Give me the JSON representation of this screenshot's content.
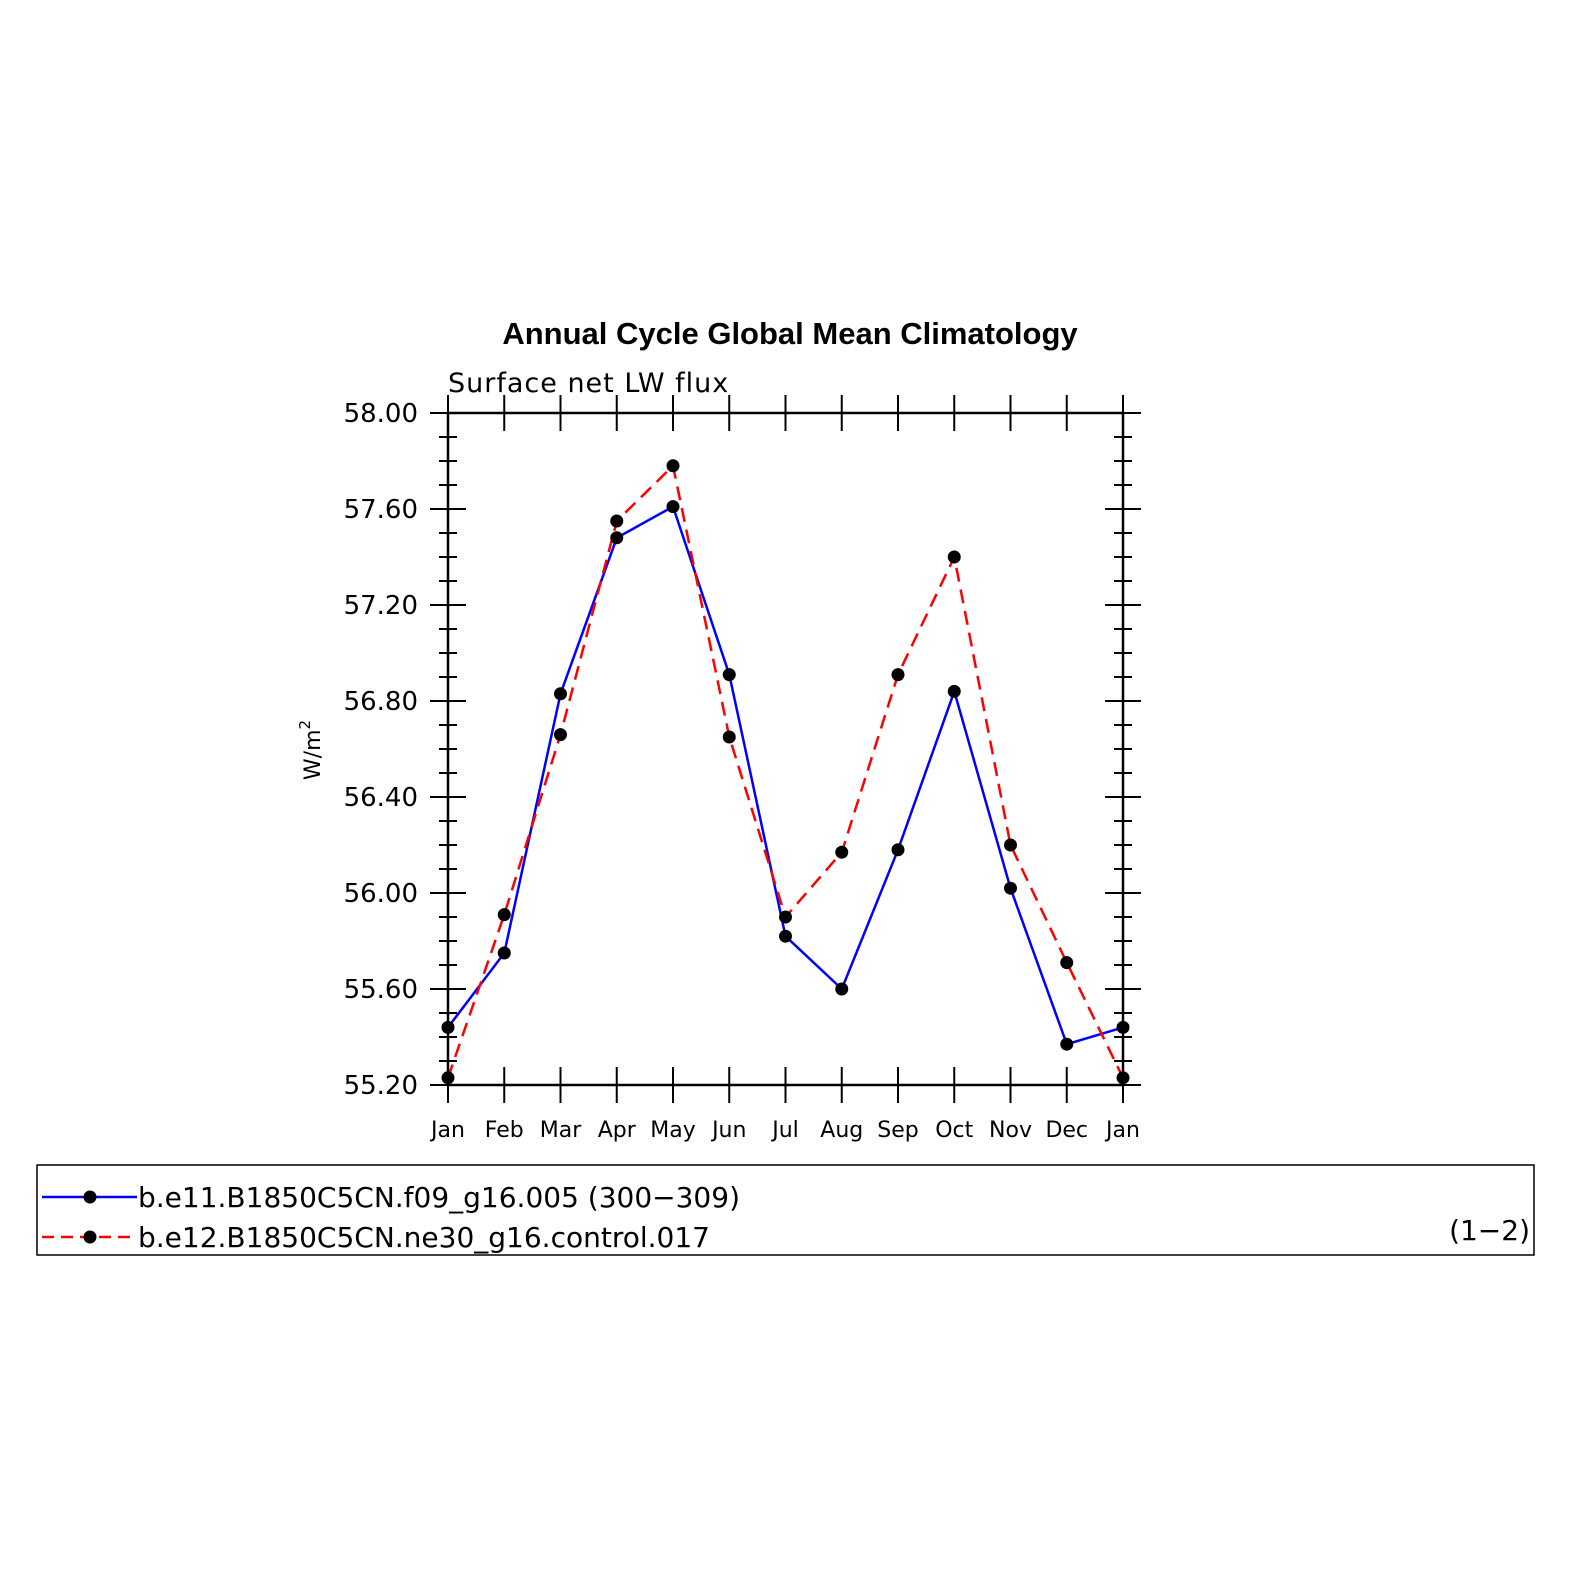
{
  "chart_data": {
    "type": "line",
    "title": "Annual Cycle Global Mean Climatology",
    "subtitle": "Surface net LW flux",
    "ylabel": "W/m",
    "ylabel_superscript": "2",
    "xlabel": "",
    "categories": [
      "Jan",
      "Feb",
      "Mar",
      "Apr",
      "May",
      "Jun",
      "Jul",
      "Aug",
      "Sep",
      "Oct",
      "Nov",
      "Dec",
      "Jan"
    ],
    "ylim": [
      55.2,
      58.0
    ],
    "yticks": [
      "55.20",
      "55.60",
      "56.00",
      "56.40",
      "56.80",
      "57.20",
      "57.60",
      "58.00"
    ],
    "yticks_values": [
      55.2,
      55.6,
      56.0,
      56.4,
      56.8,
      57.2,
      57.6,
      58.0
    ],
    "grid": false,
    "legend_placement": "bottom",
    "series": [
      {
        "name": "b.e11.B1850C5CN.f09_g16.005 (300−309)",
        "color": "#0000ff",
        "dash": "solid",
        "marker_color": "#000000",
        "values": [
          55.44,
          55.75,
          56.83,
          57.48,
          57.61,
          56.91,
          55.82,
          55.6,
          56.18,
          56.84,
          56.02,
          55.37,
          55.44
        ]
      },
      {
        "name": "b.e12.B1850C5CN.ne30_g16.control.017",
        "color": "#ff0000",
        "dash": "dashed",
        "marker_color": "#000000",
        "values": [
          55.23,
          55.91,
          56.66,
          57.55,
          57.78,
          56.65,
          55.9,
          56.17,
          56.91,
          57.4,
          56.2,
          55.71,
          55.23
        ]
      }
    ],
    "legend_annotation": "(1−2)"
  }
}
